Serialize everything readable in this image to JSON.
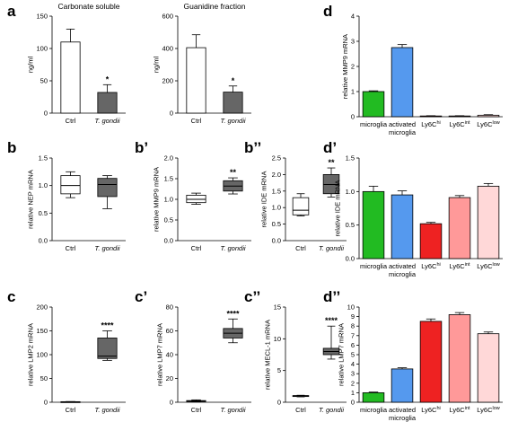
{
  "chart_data": [
    {
      "id": "a1",
      "type": "bar",
      "panel_label": "a",
      "title": "Carbonate soluble",
      "ylabel": "ng/ml",
      "ylim": [
        0,
        150
      ],
      "yticks": [
        0,
        50,
        100,
        150
      ],
      "categories": [
        "Ctrl",
        "T. gondii"
      ],
      "values": [
        110,
        32
      ],
      "errors": [
        20,
        12
      ],
      "colors": [
        "#ffffff",
        "#666666"
      ],
      "annotations": [
        "",
        "*"
      ]
    },
    {
      "id": "a2",
      "type": "bar",
      "panel_label": "",
      "title": "Guanidine fraction",
      "ylabel": "ng/ml",
      "ylim": [
        0,
        600
      ],
      "yticks": [
        0,
        200,
        400,
        600
      ],
      "categories": [
        "Ctrl",
        "T. gondii"
      ],
      "values": [
        405,
        130
      ],
      "errors": [
        80,
        38
      ],
      "colors": [
        "#ffffff",
        "#666666"
      ],
      "annotations": [
        "",
        "*"
      ]
    },
    {
      "id": "b",
      "type": "box",
      "panel_label": "b",
      "ylabel": "relative NEP mRNA",
      "ylim": [
        0,
        1.5
      ],
      "yticks": [
        0.0,
        0.5,
        1.0,
        1.5
      ],
      "categories": [
        "Ctrl",
        "T. gondii"
      ],
      "boxes": [
        {
          "min": 0.78,
          "q1": 0.85,
          "median": 1.0,
          "q3": 1.18,
          "max": 1.25
        },
        {
          "min": 0.58,
          "q1": 0.8,
          "median": 1.02,
          "q3": 1.13,
          "max": 1.18
        }
      ],
      "colors": [
        "#ffffff",
        "#666666"
      ],
      "annotations": [
        "",
        ""
      ]
    },
    {
      "id": "b1",
      "type": "box",
      "panel_label": "b’",
      "ylabel": "relative MMP9 mRNA",
      "ylim": [
        0,
        2.0
      ],
      "yticks": [
        0.0,
        0.5,
        1.0,
        1.5,
        2.0
      ],
      "categories": [
        "Ctrl",
        "T. gondii"
      ],
      "boxes": [
        {
          "min": 0.88,
          "q1": 0.92,
          "median": 1.0,
          "q3": 1.1,
          "max": 1.15
        },
        {
          "min": 1.13,
          "q1": 1.2,
          "median": 1.32,
          "q3": 1.45,
          "max": 1.52
        }
      ],
      "colors": [
        "#ffffff",
        "#666666"
      ],
      "annotations": [
        "",
        "**"
      ]
    },
    {
      "id": "b2",
      "type": "box",
      "panel_label": "b’’",
      "ylabel": "relative IDE mRNA",
      "ylim": [
        0,
        2.5
      ],
      "yticks": [
        0.0,
        0.5,
        1.0,
        1.5,
        2.0,
        2.5
      ],
      "categories": [
        "Ctrl",
        "T. gondii"
      ],
      "boxes": [
        {
          "min": 0.75,
          "q1": 0.78,
          "median": 0.92,
          "q3": 1.3,
          "max": 1.42
        },
        {
          "min": 1.32,
          "q1": 1.42,
          "median": 1.7,
          "q3": 2.0,
          "max": 2.2
        }
      ],
      "colors": [
        "#ffffff",
        "#666666"
      ],
      "annotations": [
        "",
        "**"
      ]
    },
    {
      "id": "c",
      "type": "box",
      "panel_label": "c",
      "ylabel": "relative LMP2 mRNA",
      "ylim": [
        0,
        200
      ],
      "yticks": [
        0,
        50,
        100,
        150,
        200
      ],
      "categories": [
        "Ctrl",
        "T. gondii"
      ],
      "boxes": [
        {
          "min": 0.5,
          "q1": 0.8,
          "median": 1.0,
          "q3": 1.2,
          "max": 1.5
        },
        {
          "min": 88,
          "q1": 92,
          "median": 97,
          "q3": 135,
          "max": 150
        }
      ],
      "colors": [
        "#ffffff",
        "#666666"
      ],
      "annotations": [
        "",
        "****"
      ]
    },
    {
      "id": "c1",
      "type": "box",
      "panel_label": "c’",
      "ylabel": "relative LMP7 mRNA",
      "ylim": [
        0,
        80
      ],
      "yticks": [
        0,
        20,
        40,
        60,
        80
      ],
      "categories": [
        "Ctrl",
        "T. gondii"
      ],
      "boxes": [
        {
          "min": 0.3,
          "q1": 0.6,
          "median": 1.0,
          "q3": 1.4,
          "max": 2.0
        },
        {
          "min": 50,
          "q1": 54,
          "median": 58,
          "q3": 62,
          "max": 70
        }
      ],
      "colors": [
        "#ffffff",
        "#666666"
      ],
      "annotations": [
        "",
        "****"
      ]
    },
    {
      "id": "c2",
      "type": "box",
      "panel_label": "c’’",
      "ylabel": "relative MECL-1 mRNA",
      "ylim": [
        0,
        15
      ],
      "yticks": [
        0,
        5,
        10,
        15
      ],
      "categories": [
        "Ctrl",
        "T. gondii"
      ],
      "boxes": [
        {
          "min": 0.85,
          "q1": 0.9,
          "median": 1.0,
          "q3": 1.05,
          "max": 1.1
        },
        {
          "min": 6.8,
          "q1": 7.5,
          "median": 8.0,
          "q3": 8.5,
          "max": 12.0
        }
      ],
      "colors": [
        "#ffffff",
        "#666666"
      ],
      "annotations": [
        "",
        "****"
      ]
    },
    {
      "id": "d",
      "type": "bar",
      "panel_label": "d",
      "ylabel": "relative MMP9 mRNA",
      "ylim": [
        0,
        4
      ],
      "yticks": [
        0,
        1,
        2,
        3,
        4
      ],
      "categories": [
        "microglia",
        "activated microglia",
        "Ly6C^hi",
        "Ly6C^int",
        "Ly6C^low"
      ],
      "values": [
        1.0,
        2.75,
        0.03,
        0.03,
        0.06
      ],
      "errors": [
        0.03,
        0.12,
        0.01,
        0.01,
        0.02
      ],
      "colors": [
        "#22bb22",
        "#5599ee",
        "#ee2222",
        "#ff9999",
        "#ffd8d8"
      ]
    },
    {
      "id": "d1",
      "type": "bar",
      "panel_label": "d’",
      "ylabel": "relative IDE mRNA",
      "ylim": [
        0,
        1.5
      ],
      "yticks": [
        0.0,
        0.5,
        1.0,
        1.5
      ],
      "categories": [
        "microglia",
        "activated microglia",
        "Ly6C^hi",
        "Ly6C^int",
        "Ly6C^low"
      ],
      "values": [
        1.0,
        0.95,
        0.52,
        0.91,
        1.08
      ],
      "errors": [
        0.08,
        0.06,
        0.02,
        0.03,
        0.04
      ],
      "colors": [
        "#22bb22",
        "#5599ee",
        "#ee2222",
        "#ff9999",
        "#ffd8d8"
      ]
    },
    {
      "id": "d2",
      "type": "bar",
      "panel_label": "d’’",
      "ylabel": "relative LMP7 mRNA",
      "ylim": [
        0,
        10
      ],
      "yticks": [
        0,
        1,
        2,
        3,
        4,
        5,
        6,
        7,
        8,
        9,
        10
      ],
      "categories": [
        "microglia",
        "activated microglia",
        "Ly6C^hi",
        "Ly6C^int",
        "Ly6C^low"
      ],
      "values": [
        1.0,
        3.5,
        8.5,
        9.2,
        7.2
      ],
      "errors": [
        0.07,
        0.12,
        0.25,
        0.22,
        0.18
      ],
      "colors": [
        "#22bb22",
        "#5599ee",
        "#ee2222",
        "#ff9999",
        "#ffd8d8"
      ]
    }
  ]
}
